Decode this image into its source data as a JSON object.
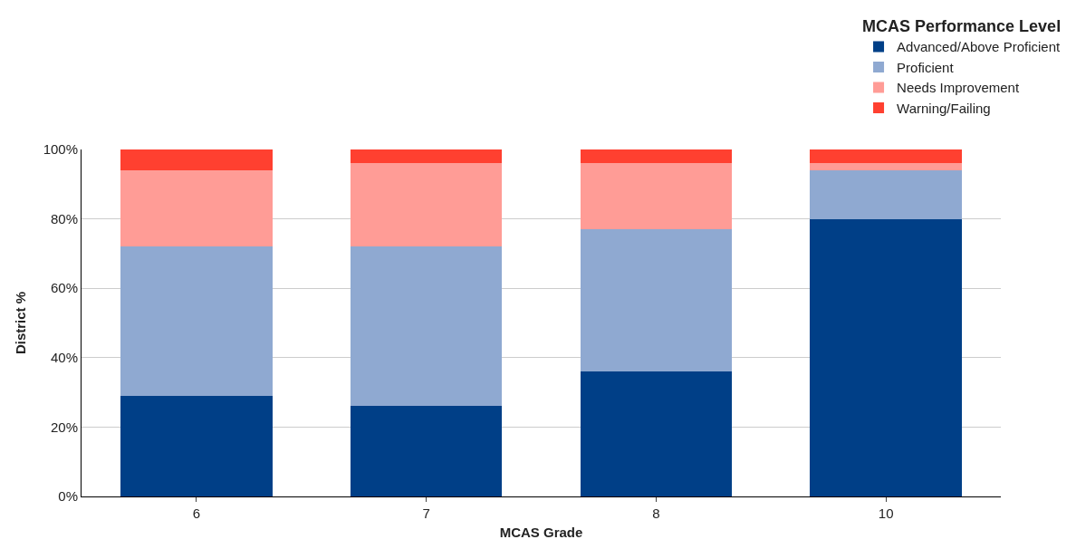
{
  "chart_data": {
    "type": "bar",
    "stacked": true,
    "xlabel": "MCAS Grade",
    "ylabel": "District %",
    "legend_title": "MCAS Performance Level",
    "categories": [
      "6",
      "7",
      "8",
      "10"
    ],
    "series": [
      {
        "name": "Advanced/Above Proficient",
        "color": "#003f87",
        "values": [
          29,
          26,
          36,
          80
        ]
      },
      {
        "name": "Proficient",
        "color": "#8fa9d1",
        "values": [
          43,
          46,
          41,
          14
        ]
      },
      {
        "name": "Needs Improvement",
        "color": "#ff9c96",
        "values": [
          22,
          24,
          19,
          2
        ]
      },
      {
        "name": "Warning/Failing",
        "color": "#ff4030",
        "values": [
          6,
          4,
          4,
          4
        ]
      }
    ],
    "ylim": [
      0,
      100
    ],
    "yticks": [
      {
        "value": 0,
        "label": "0%"
      },
      {
        "value": 20,
        "label": "20%"
      },
      {
        "value": 40,
        "label": "40%"
      },
      {
        "value": 60,
        "label": "60%"
      },
      {
        "value": 80,
        "label": "80%"
      },
      {
        "value": 100,
        "label": "100%"
      }
    ],
    "grid": "y",
    "legend": "top right"
  }
}
